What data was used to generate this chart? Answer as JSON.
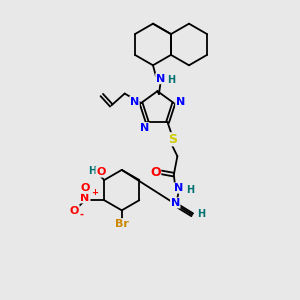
{
  "background_color": "#e8e8e8",
  "bg_hex": "#e8e8e8",
  "atom_colors": {
    "N": "#0000ff",
    "O": "#ff0000",
    "S": "#cccc00",
    "Br": "#cc8800",
    "C": "#000000",
    "H": "#007070"
  },
  "bond_lw": 1.3,
  "figsize": [
    3.0,
    3.0
  ],
  "dpi": 100
}
